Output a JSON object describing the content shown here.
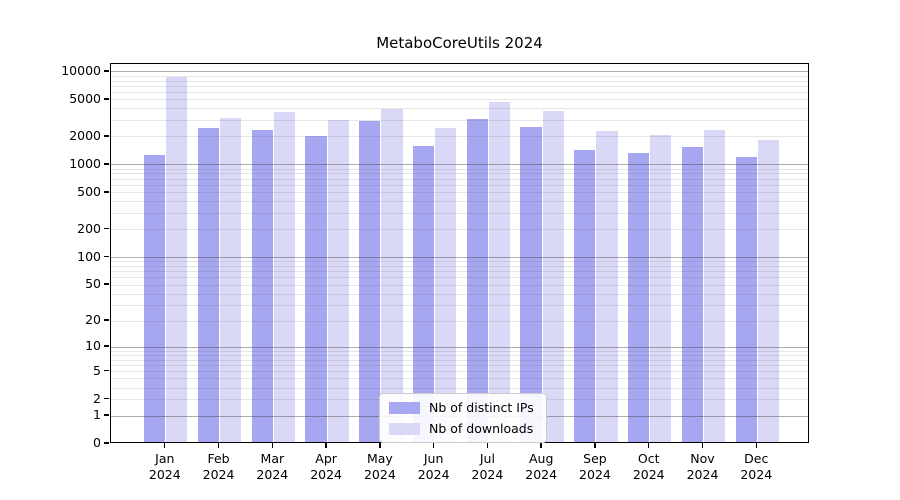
{
  "title": "MetaboCoreUtils 2024",
  "chart_data": {
    "type": "bar",
    "title": "MetaboCoreUtils 2024",
    "categories": [
      "Jan 2024",
      "Feb 2024",
      "Mar 2024",
      "Apr 2024",
      "May 2024",
      "Jun 2024",
      "Jul 2024",
      "Aug 2024",
      "Sep 2024",
      "Oct 2024",
      "Nov 2024",
      "Dec 2024"
    ],
    "series": [
      {
        "name": "Nb of distinct IPs",
        "color": "#a6a6f1",
        "values": [
          1230,
          2350,
          2250,
          1950,
          2850,
          1530,
          3000,
          2450,
          1390,
          1280,
          1480,
          1170
        ]
      },
      {
        "name": "Nb of downloads",
        "color": "#d9d9f7",
        "values": [
          8400,
          3050,
          3500,
          2900,
          3800,
          2350,
          4500,
          3600,
          2220,
          2020,
          2250,
          1770
        ]
      }
    ],
    "xlabel": "",
    "ylabel": "",
    "yscale": "log1p",
    "ylim": [
      0,
      12000
    ],
    "yticks": [
      0,
      1,
      2,
      5,
      10,
      20,
      50,
      100,
      200,
      500,
      1000,
      2000,
      5000,
      10000
    ],
    "grid": "horizontal major at powers of 10, light minors at 2-9 multiples",
    "legend_position": "lower center inside plot"
  },
  "legend": {
    "items": [
      {
        "label": "Nb of distinct IPs",
        "color": "#a6a6f1"
      },
      {
        "label": "Nb of downloads",
        "color": "#d9d9f7"
      }
    ]
  },
  "colors": {
    "bar_ips": "#a6a6f1",
    "bar_downloads": "#d9d9f7",
    "grid_major": "#b0b0b0",
    "grid_minor": "#e3e3e3",
    "axis": "#000000",
    "background": "#ffffff"
  }
}
